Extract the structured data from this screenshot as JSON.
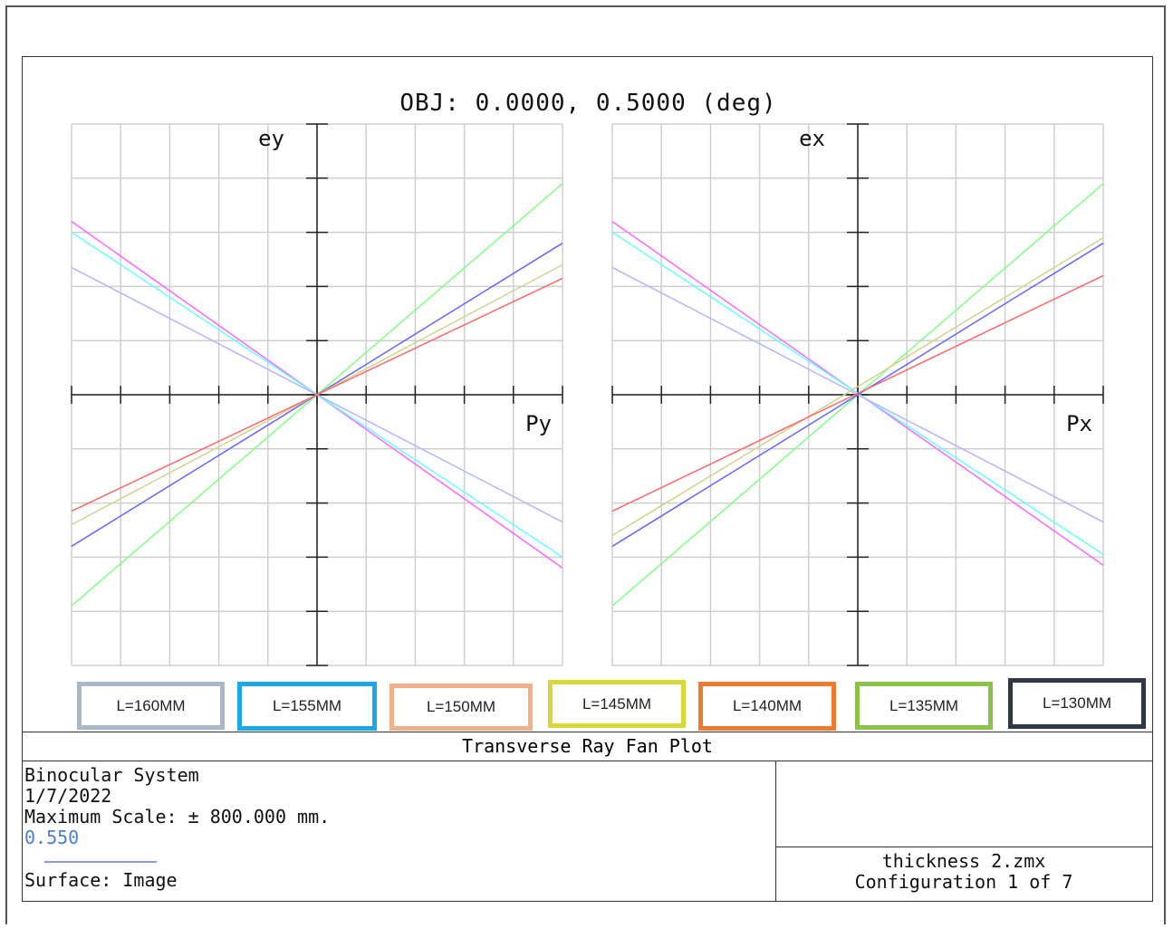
{
  "title": "OBJ: 0.0000, 0.5000 (deg)",
  "chart_data": [
    {
      "type": "line",
      "xlabel": "Py",
      "ylabel": "ey",
      "xlim": [
        -1,
        1
      ],
      "ylim": [
        -1,
        1
      ],
      "grid": true,
      "series": [
        {
          "name": "L=160MM",
          "color": "#ff66ff",
          "x": [
            -1,
            1
          ],
          "y": [
            0.64,
            -0.64
          ]
        },
        {
          "name": "L=155MM",
          "color": "#66ffff",
          "x": [
            -1,
            1
          ],
          "y": [
            0.6,
            -0.6
          ]
        },
        {
          "name": "L=150MM",
          "color": "#b4b4ff",
          "x": [
            -1,
            1
          ],
          "y": [
            0.47,
            -0.47
          ]
        },
        {
          "name": "L=145MM",
          "color": "#80ff80",
          "x": [
            -1,
            1
          ],
          "y": [
            -0.78,
            0.78
          ]
        },
        {
          "name": "L=140MM",
          "color": "#6666ff",
          "x": [
            -1,
            1
          ],
          "y": [
            -0.56,
            0.56
          ]
        },
        {
          "name": "L=135MM",
          "color": "#d2d28c",
          "x": [
            -1,
            1
          ],
          "y": [
            -0.48,
            0.48
          ]
        },
        {
          "name": "L=130MM",
          "color": "#ff6666",
          "x": [
            -1,
            1
          ],
          "y": [
            -0.43,
            0.43
          ]
        }
      ]
    },
    {
      "type": "line",
      "xlabel": "Px",
      "ylabel": "ex",
      "xlim": [
        -1,
        1
      ],
      "ylim": [
        -1,
        1
      ],
      "grid": true,
      "series": [
        {
          "name": "L=160MM",
          "color": "#ff66ff",
          "x": [
            -1,
            1
          ],
          "y": [
            0.64,
            -0.63
          ]
        },
        {
          "name": "L=155MM",
          "color": "#66ffff",
          "x": [
            -1,
            1
          ],
          "y": [
            0.6,
            -0.59
          ]
        },
        {
          "name": "L=150MM",
          "color": "#b4b4ff",
          "x": [
            -1,
            1
          ],
          "y": [
            0.47,
            -0.47
          ]
        },
        {
          "name": "L=145MM",
          "color": "#80ff80",
          "x": [
            -1,
            1
          ],
          "y": [
            -0.78,
            0.78
          ]
        },
        {
          "name": "L=140MM",
          "color": "#6666ff",
          "x": [
            -1,
            1
          ],
          "y": [
            -0.56,
            0.56
          ]
        },
        {
          "name": "L=135MM",
          "color": "#d2d28c",
          "x": [
            -1,
            1
          ],
          "y": [
            -0.52,
            0.58
          ]
        },
        {
          "name": "L=130MM",
          "color": "#ff6666",
          "x": [
            -1,
            1
          ],
          "y": [
            -0.43,
            0.44
          ]
        }
      ]
    }
  ],
  "legend": [
    {
      "label": "L=160MM",
      "border": "#a9b8c9"
    },
    {
      "label": "L=155MM",
      "border": "#1aa9e6"
    },
    {
      "label": "L=150MM",
      "border": "#f0b08a"
    },
    {
      "label": "L=145MM",
      "border": "#d8d83a"
    },
    {
      "label": "L=140MM",
      "border": "#ee7a30"
    },
    {
      "label": "L=135MM",
      "border": "#8bc34a"
    },
    {
      "label": "L=130MM",
      "border": "#2f3845"
    }
  ],
  "footer": {
    "band_title": "Transverse Ray Fan Plot",
    "info": {
      "line1": "Binocular System",
      "line2": "1/7/2022",
      "line3": "Maximum Scale: ± 800.000 mm.",
      "wavelength": "0.550",
      "surface": "Surface: Image"
    },
    "box": {
      "line1": "thickness 2.zmx",
      "line2": "Configuration 1 of 7"
    }
  }
}
